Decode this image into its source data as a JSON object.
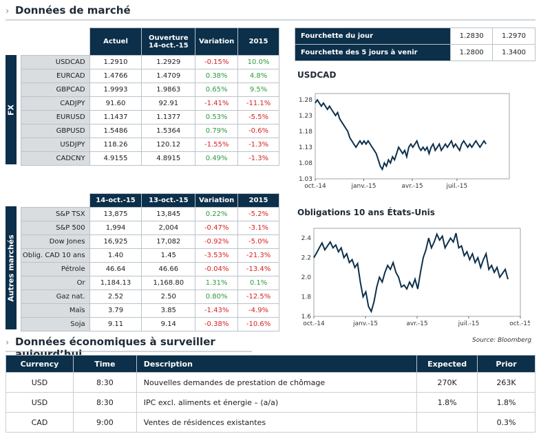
{
  "section1": {
    "title": "Données de marché"
  },
  "section2": {
    "title": "Données économiques à surveiller aujourd’hui"
  },
  "fx": {
    "side_label": "FX",
    "headers": [
      "Actuel",
      "Ouverture\n14-oct.-15",
      "Variation",
      "2015"
    ],
    "header_open_line1": "Ouverture",
    "header_open_line2": "14-oct.-15",
    "rows": [
      {
        "name": "USDCAD",
        "actuel": "1.2910",
        "ouverture": "1.2929",
        "variation": "-0.15%",
        "ytd": "10.0%"
      },
      {
        "name": "EURCAD",
        "actuel": "1.4766",
        "ouverture": "1.4709",
        "variation": "0.38%",
        "ytd": "4.8%"
      },
      {
        "name": "GBPCAD",
        "actuel": "1.9993",
        "ouverture": "1.9863",
        "variation": "0.65%",
        "ytd": "9.5%"
      },
      {
        "name": "CADJPY",
        "actuel": "91.60",
        "ouverture": "92.91",
        "variation": "-1.41%",
        "ytd": "-11.1%"
      },
      {
        "name": "EURUSD",
        "actuel": "1.1437",
        "ouverture": "1.1377",
        "variation": "0.53%",
        "ytd": "-5.5%"
      },
      {
        "name": "GBPUSD",
        "actuel": "1.5486",
        "ouverture": "1.5364",
        "variation": "0.79%",
        "ytd": "-0.6%"
      },
      {
        "name": "USDJPY",
        "actuel": "118.26",
        "ouverture": "120.12",
        "variation": "-1.55%",
        "ytd": "-1.3%"
      },
      {
        "name": "CADCNY",
        "actuel": "4.9155",
        "ouverture": "4.8915",
        "variation": "0.49%",
        "ytd": "-1.3%"
      }
    ]
  },
  "other": {
    "side_label": "Autres marchés",
    "headers": [
      "14-oct.-15",
      "13-oct.-15",
      "Variation",
      "2015"
    ],
    "rows": [
      {
        "name": "S&P TSX",
        "a": "13,875",
        "b": "13,845",
        "variation": "0.22%",
        "ytd": "-5.2%"
      },
      {
        "name": "S&P 500",
        "a": "1,994",
        "b": "2,004",
        "variation": "-0.47%",
        "ytd": "-3.1%"
      },
      {
        "name": "Dow Jones",
        "a": "16,925",
        "b": "17,082",
        "variation": "-0.92%",
        "ytd": "-5.0%"
      },
      {
        "name": "Oblig. CAD 10 ans",
        "a": "1.40",
        "b": "1.45",
        "variation": "-3.53%",
        "ytd": "-21.3%"
      },
      {
        "name": "Pétrole",
        "a": "46.64",
        "b": "46.66",
        "variation": "-0.04%",
        "ytd": "-13.4%"
      },
      {
        "name": "Or",
        "a": "1,184.13",
        "b": "1,168.80",
        "variation": "1.31%",
        "ytd": "0.1%"
      },
      {
        "name": "Gaz nat.",
        "a": "2.52",
        "b": "2.50",
        "variation": "0.80%",
        "ytd": "-12.5%"
      },
      {
        "name": "Maïs",
        "a": "3.79",
        "b": "3.85",
        "variation": "-1.43%",
        "ytd": "-4.9%"
      },
      {
        "name": "Soja",
        "a": "9.11",
        "b": "9.14",
        "variation": "-0.38%",
        "ytd": "-10.6%"
      }
    ]
  },
  "range": {
    "rows": [
      {
        "label": "Fourchette du  jour",
        "low": "1.2830",
        "high": "1.2970"
      },
      {
        "label": "Fourchette des 5 jours à venir",
        "low": "1.2800",
        "high": "1.3400"
      }
    ]
  },
  "chart_data": [
    {
      "type": "line",
      "title": "USDCAD",
      "x_ticks": [
        "oct.-14",
        "janv.-15",
        "avr.-15",
        "juil.-15"
      ],
      "y_ticks": [
        "1.28",
        "1.23",
        "1.18",
        "1.13",
        "1.08",
        "1.03"
      ],
      "ylim": [
        1.03,
        1.3
      ],
      "series": [
        {
          "values": [
            1.27,
            1.28,
            1.27,
            1.26,
            1.27,
            1.26,
            1.25,
            1.26,
            1.25,
            1.24,
            1.23,
            1.24,
            1.22,
            1.21,
            1.2,
            1.19,
            1.18,
            1.16,
            1.15,
            1.14,
            1.13,
            1.14,
            1.15,
            1.14,
            1.15,
            1.14,
            1.15,
            1.14,
            1.13,
            1.12,
            1.11,
            1.09,
            1.07,
            1.06,
            1.08,
            1.07,
            1.09,
            1.08,
            1.1,
            1.09,
            1.11,
            1.13,
            1.12,
            1.11,
            1.12,
            1.1,
            1.13,
            1.14,
            1.13,
            1.14,
            1.15,
            1.13,
            1.12,
            1.13,
            1.12,
            1.13,
            1.11,
            1.13,
            1.14,
            1.12,
            1.13,
            1.14,
            1.12,
            1.13,
            1.14,
            1.13,
            1.14,
            1.15,
            1.13,
            1.14,
            1.13,
            1.12,
            1.14,
            1.15,
            1.14,
            1.13,
            1.14,
            1.13,
            1.14,
            1.15,
            1.14,
            1.13,
            1.14,
            1.15,
            1.14
          ]
        }
      ]
    },
    {
      "type": "line",
      "title": "Obligations 10 ans États-Unis",
      "x_ticks": [
        "oct.-14",
        "janv.-15",
        "avr.-15",
        "juil.-15",
        "oct.-15"
      ],
      "y_ticks": [
        "2.4",
        "2.2",
        "2.0",
        "1.8",
        "1.6"
      ],
      "ylim": [
        1.6,
        2.5
      ],
      "series": [
        {
          "values": [
            2.2,
            2.25,
            2.3,
            2.35,
            2.28,
            2.32,
            2.36,
            2.3,
            2.33,
            2.26,
            2.3,
            2.2,
            2.24,
            2.15,
            2.18,
            2.1,
            2.14,
            1.95,
            1.8,
            1.85,
            1.7,
            1.65,
            1.75,
            1.9,
            2.0,
            1.95,
            2.05,
            2.12,
            2.08,
            2.15,
            2.05,
            2.0,
            1.9,
            1.92,
            1.88,
            1.95,
            1.9,
            1.98,
            1.88,
            2.05,
            2.2,
            2.28,
            2.4,
            2.3,
            2.36,
            2.44,
            2.38,
            2.42,
            2.3,
            2.35,
            2.4,
            2.36,
            2.45,
            2.3,
            2.32,
            2.22,
            2.26,
            2.18,
            2.24,
            2.15,
            2.2,
            2.1,
            2.18,
            2.24,
            2.08,
            2.12,
            2.05,
            2.1,
            2.0,
            2.04,
            2.08,
            1.98
          ]
        }
      ]
    }
  ],
  "source": "Source: Bloomberg",
  "eco": {
    "headers": [
      "Currency",
      "Time",
      "Description",
      "Expected",
      "Prior"
    ],
    "rows": [
      {
        "currency": "USD",
        "time": "8:30",
        "description": "Nouvelles demandes de prestation de chômage",
        "expected": "270K",
        "prior": "263K"
      },
      {
        "currency": "USD",
        "time": "8:30",
        "description": "IPC excl. aliments et énergie – (a/a)",
        "expected": "1.8%",
        "prior": "1.8%"
      },
      {
        "currency": "CAD",
        "time": "9:00",
        "description": "Ventes de résidences existantes",
        "expected": "",
        "prior": "0.3%"
      }
    ]
  }
}
